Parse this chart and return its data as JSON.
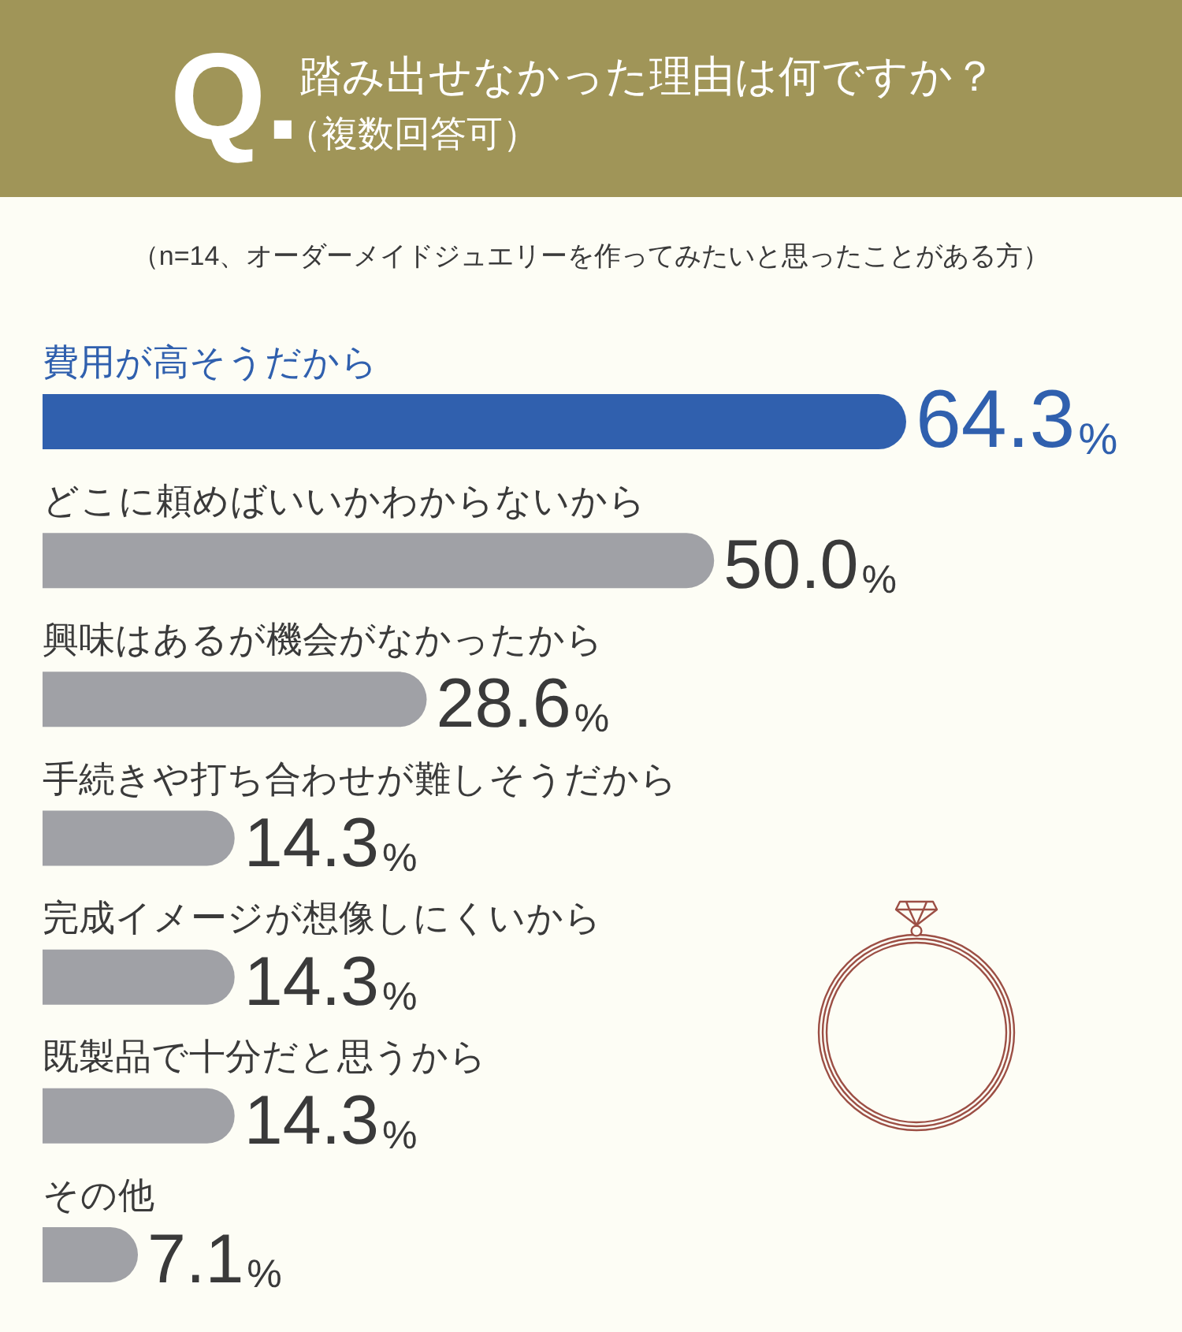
{
  "chart_data": {
    "type": "bar",
    "orientation": "horizontal",
    "title": "踏み出せなかった理由は何ですか？",
    "subtitle": "（複数回答可）",
    "annotations": [
      "Q.",
      "（n=14、オーダーメイドジュエリーを作ってみたいと思ったことがある方）"
    ],
    "categories": [
      "費用が高そうだから",
      "どこに頼めばいいかわからないから",
      "興味はあるが機会がなかったから",
      "手続きや打ち合わせが難しそうだから",
      "完成イメージが想像しにくいから",
      "既製品で十分だと思うから",
      "その他"
    ],
    "values": [
      64.3,
      50.0,
      28.6,
      14.3,
      14.3,
      14.3,
      7.1
    ],
    "colors": [
      "#3060ae",
      "#a0a1a6",
      "#a0a1a6",
      "#a0a1a6",
      "#a0a1a6",
      "#a0a1a6",
      "#a0a1a6"
    ],
    "value_labels": [
      "64.3%",
      "50.0%",
      "28.6%",
      "14.3%",
      "14.3%",
      "14.3%",
      "7.1%"
    ]
  }
}
